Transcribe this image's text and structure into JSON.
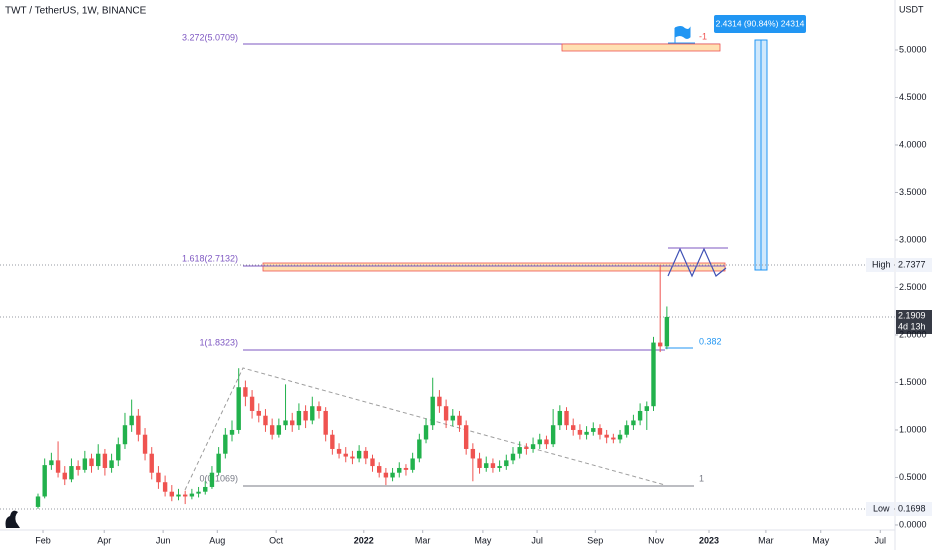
{
  "chart_data": {
    "type": "candlestick",
    "title": "TWT / TetherUS, 1W, BINANCE",
    "axis_unit": "USDT",
    "up_color": "#22b14c",
    "down_color": "#ef5350",
    "open": [
      0.19,
      0.3,
      0.63,
      0.68,
      0.55,
      0.48,
      0.62,
      0.58,
      0.7,
      0.62,
      0.75,
      0.6,
      0.68,
      0.85,
      1.05,
      1.15,
      0.95,
      0.75,
      0.55,
      0.45,
      0.35,
      0.3,
      0.32,
      0.3,
      0.33,
      0.35,
      0.4,
      0.55,
      0.75,
      0.95,
      1.0,
      1.45,
      1.35,
      1.2,
      1.15,
      1.05,
      0.95,
      1.05,
      1.1,
      1.05,
      1.2,
      1.1,
      1.25,
      1.2,
      0.95,
      0.8,
      0.75,
      0.72,
      0.7,
      0.78,
      0.7,
      0.62,
      0.55,
      0.5,
      0.55,
      0.6,
      0.58,
      0.7,
      0.9,
      1.05,
      1.35,
      1.25,
      1.1,
      1.15,
      1.05,
      0.8,
      0.7,
      0.6,
      0.65,
      0.6,
      0.62,
      0.68,
      0.75,
      0.82,
      0.8,
      0.85,
      0.9,
      0.85,
      1.05,
      1.2,
      1.05,
      1.0,
      0.95,
      0.98,
      1.02,
      0.95,
      0.92,
      0.9,
      0.95,
      1.05,
      1.1,
      1.2,
      1.25,
      1.92,
      1.88
    ],
    "high": [
      0.33,
      0.7,
      0.76,
      0.88,
      0.62,
      0.7,
      0.68,
      0.78,
      0.75,
      0.85,
      0.8,
      0.75,
      0.92,
      1.18,
      1.32,
      1.22,
      1.02,
      0.82,
      0.62,
      0.52,
      0.42,
      0.38,
      0.36,
      0.38,
      0.4,
      0.46,
      0.62,
      0.82,
      1.02,
      1.1,
      1.65,
      1.52,
      1.42,
      1.28,
      1.22,
      1.12,
      1.12,
      1.48,
      1.18,
      1.28,
      1.26,
      1.35,
      1.3,
      1.24,
      1.0,
      0.86,
      0.82,
      0.78,
      0.84,
      0.82,
      0.74,
      0.66,
      0.6,
      0.6,
      0.66,
      0.64,
      0.76,
      0.96,
      1.12,
      1.55,
      1.42,
      1.32,
      1.22,
      1.2,
      1.1,
      0.86,
      0.76,
      0.72,
      0.7,
      0.68,
      0.74,
      0.82,
      0.88,
      0.86,
      0.92,
      0.96,
      0.94,
      1.22,
      1.26,
      1.24,
      1.12,
      1.06,
      1.04,
      1.08,
      1.06,
      1.0,
      0.96,
      1.0,
      1.1,
      1.16,
      1.28,
      1.3,
      1.98,
      2.74,
      2.3
    ],
    "low": [
      0.17,
      0.28,
      0.58,
      0.5,
      0.42,
      0.45,
      0.52,
      0.55,
      0.55,
      0.58,
      0.52,
      0.55,
      0.62,
      0.8,
      0.98,
      0.88,
      0.68,
      0.48,
      0.38,
      0.3,
      0.25,
      0.26,
      0.22,
      0.27,
      0.29,
      0.32,
      0.38,
      0.52,
      0.7,
      0.88,
      0.96,
      1.25,
      1.12,
      1.08,
      0.98,
      0.9,
      0.92,
      1.0,
      0.98,
      1.0,
      1.02,
      1.06,
      1.12,
      0.88,
      0.74,
      0.7,
      0.66,
      0.64,
      0.66,
      0.64,
      0.56,
      0.5,
      0.42,
      0.46,
      0.5,
      0.52,
      0.55,
      0.66,
      0.86,
      1.0,
      1.18,
      1.02,
      1.04,
      0.98,
      0.74,
      0.46,
      0.54,
      0.56,
      0.55,
      0.56,
      0.58,
      0.64,
      0.7,
      0.74,
      0.76,
      0.8,
      0.8,
      0.82,
      1.0,
      1.0,
      0.94,
      0.9,
      0.9,
      0.94,
      0.9,
      0.86,
      0.86,
      0.86,
      0.92,
      1.0,
      1.05,
      1.0,
      1.2,
      1.82,
      1.85
    ],
    "close": [
      0.3,
      0.63,
      0.68,
      0.55,
      0.48,
      0.62,
      0.58,
      0.7,
      0.62,
      0.75,
      0.6,
      0.68,
      0.85,
      1.05,
      1.15,
      0.95,
      0.75,
      0.55,
      0.45,
      0.35,
      0.3,
      0.32,
      0.3,
      0.33,
      0.35,
      0.4,
      0.55,
      0.75,
      0.95,
      1.0,
      1.45,
      1.35,
      1.2,
      1.15,
      1.05,
      0.95,
      1.05,
      1.1,
      1.05,
      1.2,
      1.1,
      1.25,
      1.2,
      0.95,
      0.8,
      0.75,
      0.72,
      0.7,
      0.78,
      0.7,
      0.62,
      0.55,
      0.5,
      0.55,
      0.6,
      0.58,
      0.7,
      0.9,
      1.05,
      1.35,
      1.25,
      1.1,
      1.15,
      1.05,
      0.8,
      0.7,
      0.6,
      0.65,
      0.6,
      0.62,
      0.68,
      0.75,
      0.82,
      0.8,
      0.85,
      0.9,
      0.85,
      1.05,
      1.2,
      1.05,
      1.0,
      0.95,
      0.98,
      1.02,
      0.95,
      0.92,
      0.9,
      0.95,
      1.05,
      1.1,
      1.2,
      1.25,
      1.92,
      1.88,
      2.19
    ],
    "xlim": [
      -5.68,
      128.1
    ],
    "xticks": [
      {
        "value": 0.75,
        "label": "Feb"
      },
      {
        "value": 9.9,
        "label": "Apr"
      },
      {
        "value": 18.7,
        "label": "Jun"
      },
      {
        "value": 26.8,
        "label": "Aug"
      },
      {
        "value": 35.6,
        "label": "Oct"
      },
      {
        "value": 48.7,
        "label": "2022"
      },
      {
        "value": 57.5,
        "label": "Mar"
      },
      {
        "value": 66.5,
        "label": "May"
      },
      {
        "value": 74.6,
        "label": "Jul"
      },
      {
        "value": 83.3,
        "label": "Sep"
      },
      {
        "value": 92.4,
        "label": "Nov"
      },
      {
        "value": 100.3,
        "label": "2023"
      },
      {
        "value": 108.8,
        "label": "Mar"
      },
      {
        "value": 117.0,
        "label": "May"
      },
      {
        "value": 125.9,
        "label": "Jul"
      }
    ],
    "ylim": [
      -0.053,
      5.526
    ],
    "yticks": [
      {
        "value": 0,
        "label": "0.0000"
      },
      {
        "value": 0.5,
        "label": "0.5000"
      },
      {
        "value": 1,
        "label": "1.0000"
      },
      {
        "value": 1.5,
        "label": "1.5000"
      },
      {
        "value": 2,
        "label": "2.0000"
      },
      {
        "value": 2.5,
        "label": "2.5000"
      },
      {
        "value": 3,
        "label": "3.0000"
      },
      {
        "value": 3.5,
        "label": "3.5000"
      },
      {
        "value": 4,
        "label": "4.0000"
      },
      {
        "value": 4.5,
        "label": "4.5000"
      },
      {
        "value": 5,
        "label": "5.0000"
      }
    ],
    "fib_labels": [
      "3.272(5.0709)",
      "1.618(2.7132)",
      "1(1.8323)",
      "0(0.1069)"
    ],
    "trend_labels": [
      "0.382",
      "1",
      "-1"
    ],
    "measure_label": "2.4314 (90.84%) 24314",
    "high_marker": {
      "name": "High",
      "price": "2.7377"
    },
    "last_marker": {
      "price": "2.1909",
      "countdown": "4d 13h"
    },
    "low_marker": {
      "name": "Low",
      "price": "0.1698"
    }
  }
}
